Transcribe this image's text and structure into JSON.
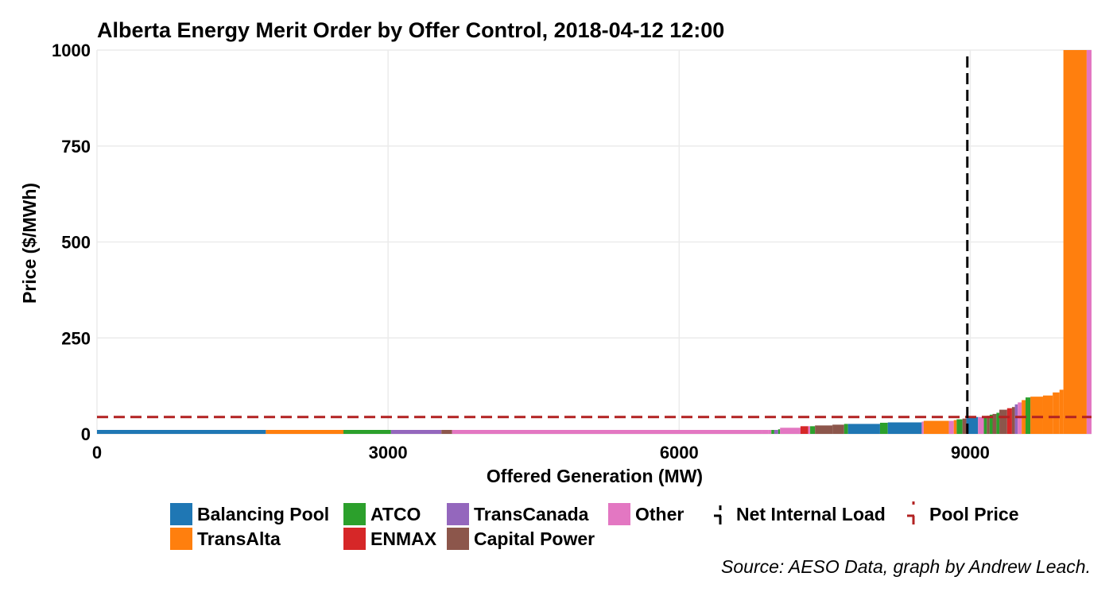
{
  "chart_data": {
    "type": "area",
    "title": "Alberta Energy Merit Order by Offer Control, 2018-04-12 12:00",
    "xlabel": "Offered Generation (MW)",
    "ylabel": "Price ($/MWh)",
    "caption": "Source: AESO Data, graph by Andrew Leach.",
    "xlim": [
      0,
      10250
    ],
    "ylim": [
      0,
      1000
    ],
    "x_ticks": [
      0,
      3000,
      6000,
      9000
    ],
    "y_ticks": [
      0,
      250,
      500,
      750,
      1000
    ],
    "grid": true,
    "legend_position": "bottom",
    "colors": {
      "Balancing Pool": "#1f77b4",
      "TransAlta": "#ff7f0e",
      "ATCO": "#2ca02c",
      "ENMAX": "#d62728",
      "TransCanada": "#9467bd",
      "Capital Power": "#8c564b",
      "Other": "#e377c2",
      "Net Internal Load": "#000000",
      "Pool Price": "#b22222"
    },
    "legend": [
      {
        "name": "Balancing Pool",
        "kind": "fill"
      },
      {
        "name": "TransAlta",
        "kind": "fill"
      },
      {
        "name": "ATCO",
        "kind": "fill"
      },
      {
        "name": "ENMAX",
        "kind": "fill"
      },
      {
        "name": "TransCanada",
        "kind": "fill"
      },
      {
        "name": "Capital Power",
        "kind": "fill"
      },
      {
        "name": "Other",
        "kind": "fill"
      },
      {
        "name": "Net Internal Load",
        "kind": "vline"
      },
      {
        "name": "Pool Price",
        "kind": "hline"
      }
    ],
    "net_internal_load_mw": 8970,
    "pool_price": 44,
    "blocks": [
      {
        "owner": "Balancing Pool",
        "x0": 0,
        "x1": 1740,
        "price": 0
      },
      {
        "owner": "TransAlta",
        "x0": 1740,
        "x1": 2540,
        "price": 0
      },
      {
        "owner": "ATCO",
        "x0": 2540,
        "x1": 3030,
        "price": 0
      },
      {
        "owner": "TransCanada",
        "x0": 3030,
        "x1": 3550,
        "price": 0
      },
      {
        "owner": "Capital Power",
        "x0": 3550,
        "x1": 3660,
        "price": 0
      },
      {
        "owner": "Other",
        "x0": 3660,
        "x1": 6850,
        "price": 0
      },
      {
        "owner": "Other",
        "x0": 6850,
        "x1": 6920,
        "price": 5
      },
      {
        "owner": "Other",
        "x0": 6920,
        "x1": 6950,
        "price": 8
      },
      {
        "owner": "ATCO",
        "x0": 6950,
        "x1": 6980,
        "price": 10
      },
      {
        "owner": "TransCanada",
        "x0": 6980,
        "x1": 7020,
        "price": 10
      },
      {
        "owner": "ATCO",
        "x0": 7020,
        "x1": 7040,
        "price": 12
      },
      {
        "owner": "Other",
        "x0": 7040,
        "x1": 7250,
        "price": 16
      },
      {
        "owner": "ENMAX",
        "x0": 7250,
        "x1": 7330,
        "price": 20
      },
      {
        "owner": "Other",
        "x0": 7330,
        "x1": 7350,
        "price": 20
      },
      {
        "owner": "ATCO",
        "x0": 7350,
        "x1": 7400,
        "price": 20
      },
      {
        "owner": "Capital Power",
        "x0": 7400,
        "x1": 7580,
        "price": 22
      },
      {
        "owner": "Capital Power",
        "x0": 7580,
        "x1": 7700,
        "price": 24
      },
      {
        "owner": "ATCO",
        "x0": 7700,
        "x1": 7740,
        "price": 26
      },
      {
        "owner": "Balancing Pool",
        "x0": 7740,
        "x1": 8070,
        "price": 26
      },
      {
        "owner": "ATCO",
        "x0": 8070,
        "x1": 8150,
        "price": 29
      },
      {
        "owner": "Balancing Pool",
        "x0": 8150,
        "x1": 8500,
        "price": 30
      },
      {
        "owner": "Other",
        "x0": 8500,
        "x1": 8520,
        "price": 32
      },
      {
        "owner": "TransAlta",
        "x0": 8520,
        "x1": 8780,
        "price": 34
      },
      {
        "owner": "Other",
        "x0": 8780,
        "x1": 8830,
        "price": 34
      },
      {
        "owner": "TransAlta",
        "x0": 8830,
        "x1": 8860,
        "price": 36
      },
      {
        "owner": "ATCO",
        "x0": 8860,
        "x1": 8920,
        "price": 38
      },
      {
        "owner": "Capital Power",
        "x0": 8920,
        "x1": 8960,
        "price": 40
      },
      {
        "owner": "Balancing Pool",
        "x0": 8960,
        "x1": 9080,
        "price": 44
      },
      {
        "owner": "Other",
        "x0": 9080,
        "x1": 9140,
        "price": 44
      },
      {
        "owner": "ATCO",
        "x0": 9140,
        "x1": 9170,
        "price": 45
      },
      {
        "owner": "Capital Power",
        "x0": 9170,
        "x1": 9200,
        "price": 47
      },
      {
        "owner": "ATCO",
        "x0": 9200,
        "x1": 9230,
        "price": 50
      },
      {
        "owner": "Capital Power",
        "x0": 9230,
        "x1": 9270,
        "price": 52
      },
      {
        "owner": "ATCO",
        "x0": 9270,
        "x1": 9300,
        "price": 55
      },
      {
        "owner": "Capital Power",
        "x0": 9300,
        "x1": 9380,
        "price": 63
      },
      {
        "owner": "ENMAX",
        "x0": 9380,
        "x1": 9430,
        "price": 67
      },
      {
        "owner": "Capital Power",
        "x0": 9430,
        "x1": 9460,
        "price": 70
      },
      {
        "owner": "TransCanada",
        "x0": 9460,
        "x1": 9490,
        "price": 77
      },
      {
        "owner": "Other",
        "x0": 9490,
        "x1": 9530,
        "price": 82
      },
      {
        "owner": "TransAlta",
        "x0": 9530,
        "x1": 9570,
        "price": 88
      },
      {
        "owner": "ATCO",
        "x0": 9570,
        "x1": 9620,
        "price": 95
      },
      {
        "owner": "TransAlta",
        "x0": 9620,
        "x1": 9750,
        "price": 97
      },
      {
        "owner": "TransAlta",
        "x0": 9750,
        "x1": 9850,
        "price": 100
      },
      {
        "owner": "TransAlta",
        "x0": 9850,
        "x1": 9920,
        "price": 108
      },
      {
        "owner": "TransAlta",
        "x0": 9920,
        "x1": 9960,
        "price": 115
      },
      {
        "owner": "TransAlta",
        "x0": 9960,
        "x1": 10200,
        "price": 1000
      },
      {
        "owner": "Other",
        "x0": 10200,
        "x1": 10250,
        "price": 1000
      }
    ]
  }
}
